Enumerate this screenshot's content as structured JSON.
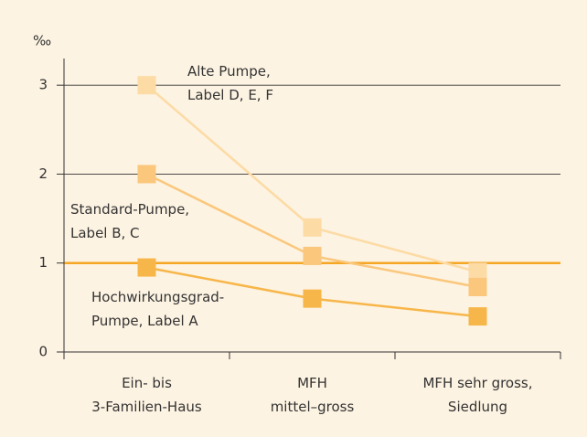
{
  "chart_data": {
    "type": "line",
    "y_unit": "‰",
    "categories": [
      "Ein- bis\n3-Familien-Haus",
      "MFH\nmittel–gross",
      "MFH sehr gross,\nSiedlung"
    ],
    "series": [
      {
        "name": "Alte Pumpe,\nLabel D, E, F",
        "color": "#fcdba5",
        "values": [
          3.0,
          1.4,
          0.9
        ]
      },
      {
        "name": "Standard-Pumpe,\nLabel B, C",
        "color": "#fac77c",
        "values": [
          2.0,
          1.08,
          0.73
        ]
      },
      {
        "name": "Hochwirkungsgrad-\nPumpe, Label A",
        "color": "#f7b649",
        "values": [
          0.95,
          0.6,
          0.4
        ]
      }
    ],
    "reference_line": {
      "value": 1,
      "color": "#f5a623"
    },
    "ylim": [
      0,
      3.3
    ],
    "yticks": [
      0,
      1,
      2,
      3
    ],
    "grid": true
  }
}
